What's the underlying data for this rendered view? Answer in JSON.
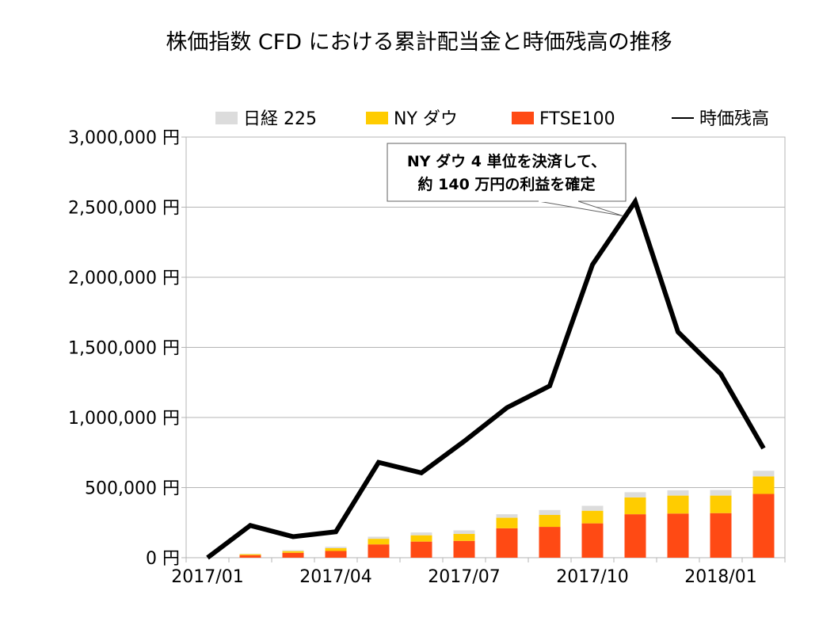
{
  "chart_data": {
    "type": "bar",
    "title": "株価指数 CFD における累計配当金と時価残高の推移",
    "stacked": true,
    "xlabel": "",
    "ylabel": "",
    "x_ticks": [
      "2017/01",
      "2017/04",
      "2017/07",
      "2017/10",
      "2018/01"
    ],
    "categories": [
      "2017/01",
      "2017/02",
      "2017/03",
      "2017/04",
      "2017/05",
      "2017/06",
      "2017/07",
      "2017/08",
      "2017/09",
      "2017/10",
      "2017/11",
      "2017/12",
      "2018/01",
      "2018/02"
    ],
    "y_ticks": [
      "0 円",
      "500,000 円",
      "1,000,000 円",
      "1,500,000 円",
      "2,000,000 円",
      "2,500,000 円",
      "3,000,000 円"
    ],
    "ylim": [
      0,
      3000000
    ],
    "grid": true,
    "legend_position": "top",
    "series": [
      {
        "name": "FTSE100",
        "kind": "bar",
        "color": "#ff4a14",
        "values": [
          0,
          18000,
          35000,
          48000,
          95000,
          115000,
          120000,
          210000,
          220000,
          245000,
          310000,
          315000,
          318000,
          455000
        ]
      },
      {
        "name": "NY ダウ",
        "kind": "bar",
        "color": "#ffcc00",
        "values": [
          0,
          7000,
          12000,
          20000,
          40000,
          45000,
          50000,
          75000,
          85000,
          90000,
          120000,
          128000,
          125000,
          125000
        ]
      },
      {
        "name": "日経 225",
        "kind": "bar",
        "color": "#dcdcdc",
        "values": [
          0,
          3000,
          7000,
          10000,
          15000,
          20000,
          25000,
          25000,
          35000,
          35000,
          37000,
          38000,
          40000,
          40000
        ]
      },
      {
        "name": "時価残高",
        "kind": "line",
        "color": "#000000",
        "values": [
          0,
          230000,
          150000,
          185000,
          680000,
          605000,
          830000,
          1070000,
          1225000,
          2090000,
          2540000,
          1610000,
          1310000,
          780000
        ]
      }
    ],
    "annotation": {
      "lines": [
        "NY ダウ 4 単位を決済して、",
        "約 140 万円の利益を確定"
      ],
      "target_index": 10
    }
  }
}
